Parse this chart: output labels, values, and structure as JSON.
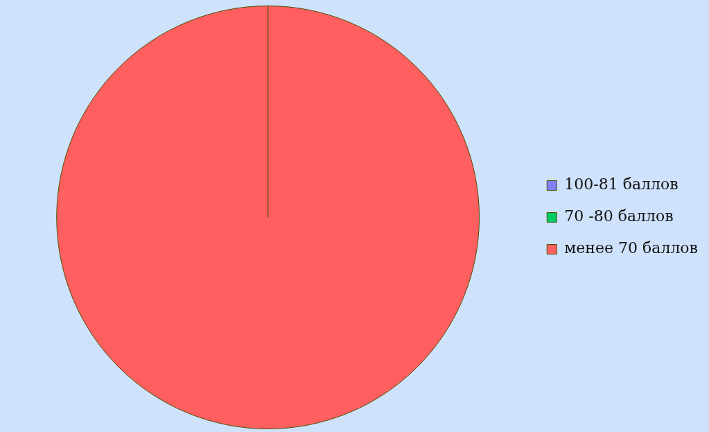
{
  "chart_data": {
    "type": "pie",
    "categories": [
      "100-81 баллов",
      "70 -80 баллов",
      "менее 70 баллов"
    ],
    "values": [
      0,
      0,
      100
    ],
    "colors": [
      "#8080ff",
      "#00cc66",
      "#ff5f5f"
    ],
    "legend": "right"
  }
}
